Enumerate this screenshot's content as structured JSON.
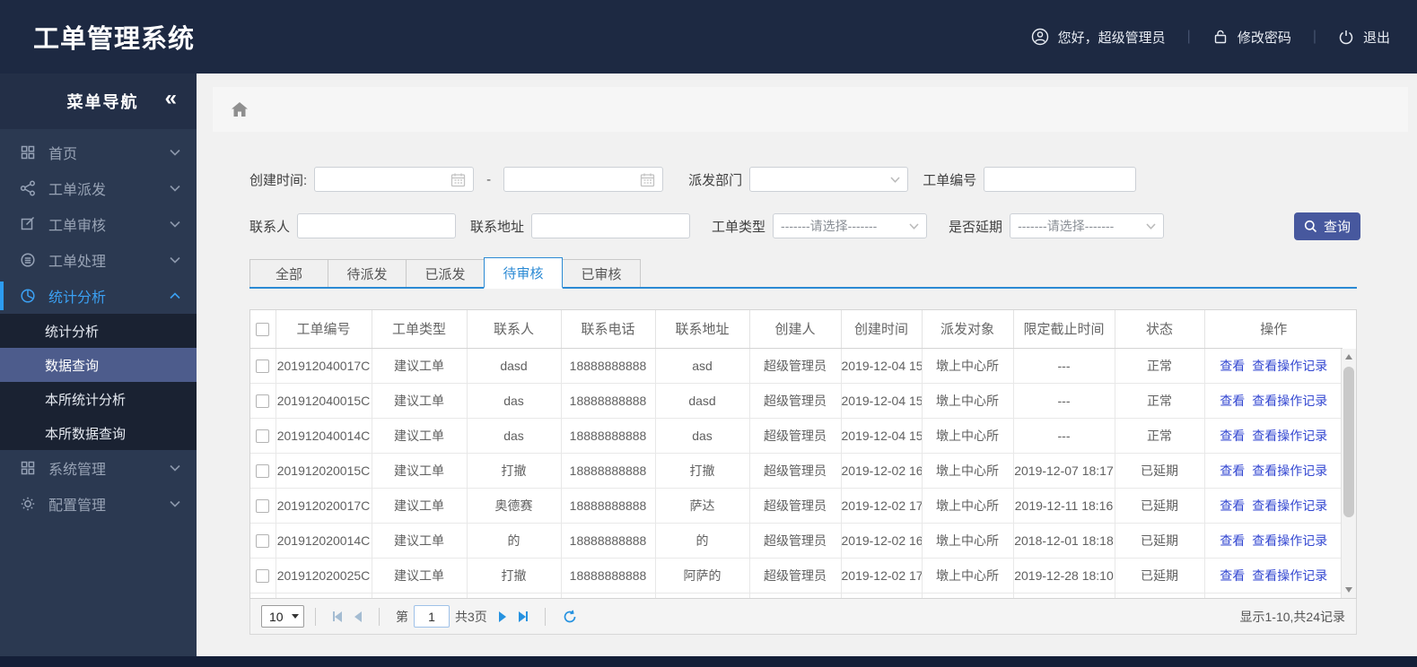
{
  "header": {
    "app_title": "工单管理系统",
    "greeting": "您好，超级管理员",
    "change_password": "修改密码",
    "logout": "退出",
    "icons": [
      "user-icon",
      "lock-icon",
      "power-icon"
    ]
  },
  "sidebar": {
    "title": "菜单导航",
    "collapse_glyph": "«",
    "items": [
      {
        "label": "首页",
        "icon": "grid-icon"
      },
      {
        "label": "工单派发",
        "icon": "share-icon"
      },
      {
        "label": "工单审核",
        "icon": "edit-icon"
      },
      {
        "label": "工单处理",
        "icon": "process-icon"
      },
      {
        "label": "统计分析",
        "icon": "pie-chart-icon",
        "active": true,
        "expanded": true
      },
      {
        "label": "系统管理",
        "icon": "system-grid-icon"
      },
      {
        "label": "配置管理",
        "icon": "gear-icon"
      }
    ],
    "submenu": [
      {
        "label": "统计分析"
      },
      {
        "label": "数据查询",
        "active": true
      },
      {
        "label": "本所统计分析"
      },
      {
        "label": "本所数据查询"
      }
    ]
  },
  "filters": {
    "create_time_label": "创建时间:",
    "date_separator": "-",
    "dept_label": "派发部门",
    "order_no_label": "工单编号",
    "contact_label": "联系人",
    "address_label": "联系地址",
    "type_label": "工单类型",
    "type_value": "-------请选择-------",
    "delay_label": "是否延期",
    "delay_value": "-------请选择-------",
    "search_button": "查询"
  },
  "tabs": [
    {
      "label": "全部"
    },
    {
      "label": "待派发"
    },
    {
      "label": "已派发"
    },
    {
      "label": "待审核",
      "active": true
    },
    {
      "label": "已审核"
    }
  ],
  "table": {
    "columns": [
      "工单编号",
      "工单类型",
      "联系人",
      "联系电话",
      "联系地址",
      "创建人",
      "创建时间",
      "派发对象",
      "限定截止时间",
      "状态",
      "操作"
    ],
    "action_view": "查看",
    "action_log": "查看操作记录",
    "rows": [
      {
        "order_no": "201912040017C",
        "type": "建议工单",
        "contact": "dasd",
        "phone": "18888888888",
        "address": "asd",
        "creator": "超级管理员",
        "created": "2019-12-04 15",
        "target": "墩上中心所",
        "deadline": "---",
        "status": "正常",
        "delayed": false
      },
      {
        "order_no": "201912040015C",
        "type": "建议工单",
        "contact": "das",
        "phone": "18888888888",
        "address": "dasd",
        "creator": "超级管理员",
        "created": "2019-12-04 15",
        "target": "墩上中心所",
        "deadline": "---",
        "status": "正常",
        "delayed": false
      },
      {
        "order_no": "201912040014C",
        "type": "建议工单",
        "contact": "das",
        "phone": "18888888888",
        "address": "das",
        "creator": "超级管理员",
        "created": "2019-12-04 15",
        "target": "墩上中心所",
        "deadline": "---",
        "status": "正常",
        "delayed": false
      },
      {
        "order_no": "201912020015C",
        "type": "建议工单",
        "contact": "打撤",
        "phone": "18888888888",
        "address": "打撤",
        "creator": "超级管理员",
        "created": "2019-12-02 16",
        "target": "墩上中心所",
        "deadline": "2019-12-07 18:17",
        "status": "已延期",
        "delayed": true
      },
      {
        "order_no": "201912020017C",
        "type": "建议工单",
        "contact": "奥德赛",
        "phone": "18888888888",
        "address": "萨达",
        "creator": "超级管理员",
        "created": "2019-12-02 17",
        "target": "墩上中心所",
        "deadline": "2019-12-11 18:16",
        "status": "已延期",
        "delayed": true
      },
      {
        "order_no": "201912020014C",
        "type": "建议工单",
        "contact": "的",
        "phone": "18888888888",
        "address": "的",
        "creator": "超级管理员",
        "created": "2019-12-02 16",
        "target": "墩上中心所",
        "deadline": "2018-12-01 18:18",
        "status": "已延期",
        "delayed": true
      },
      {
        "order_no": "201912020025C",
        "type": "建议工单",
        "contact": "打撤",
        "phone": "18888888888",
        "address": "阿萨的",
        "creator": "超级管理员",
        "created": "2019-12-02 17",
        "target": "墩上中心所",
        "deadline": "2019-12-28 18:10",
        "status": "已延期",
        "delayed": true
      }
    ]
  },
  "pagination": {
    "page_size": "10",
    "page_prefix": "第",
    "current_page": "1",
    "total_pages_label": "共3页",
    "summary": "显示1-10,共24记录"
  }
}
